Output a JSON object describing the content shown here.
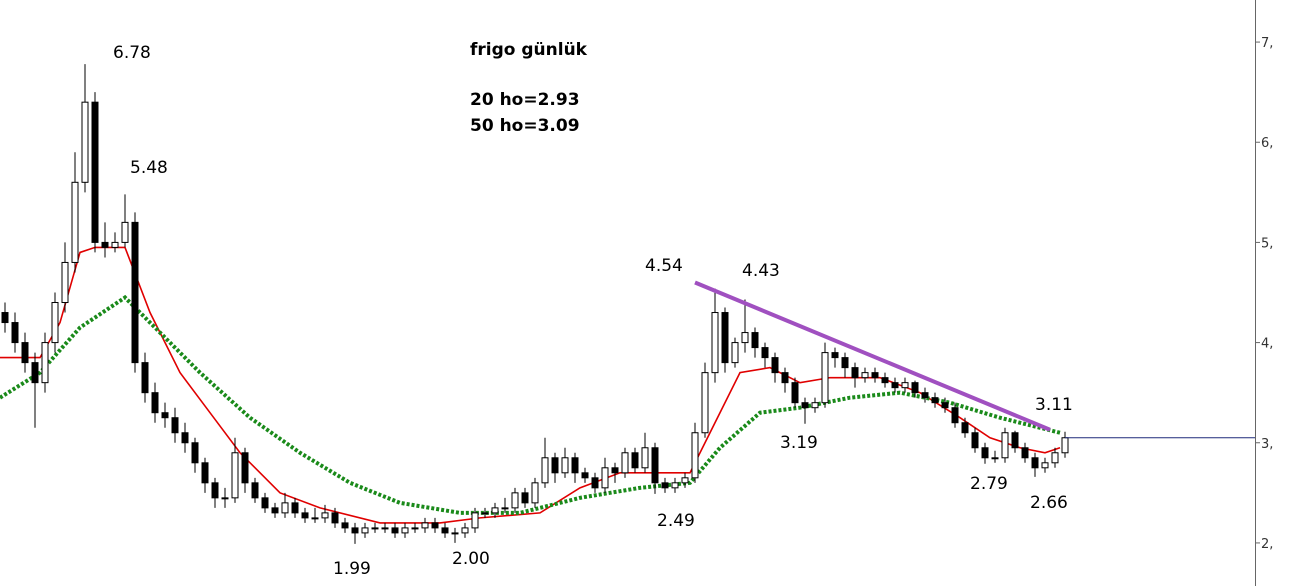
{
  "chart_data": {
    "type": "candlestick",
    "title": "frigo günlük",
    "notes": [
      "20 ho=2.93",
      "50 ho=3.09"
    ],
    "xlim": [
      -0.5,
      125
    ],
    "ylim": [
      1.57,
      7.42
    ],
    "yticks": [
      {
        "value": 2,
        "label": "2,"
      },
      {
        "value": 3,
        "label": "3,"
      },
      {
        "value": 4,
        "label": "4,"
      },
      {
        "value": 5,
        "label": "5,"
      },
      {
        "value": 6,
        "label": "6,"
      },
      {
        "value": 7,
        "label": "7,"
      }
    ],
    "up_color": "#ffffff",
    "down_color": "#000000",
    "last_line_color": "#1f2a7a",
    "open": [
      4.3,
      4.2,
      4.0,
      3.8,
      3.6,
      4.0,
      4.4,
      4.8,
      5.6,
      6.4,
      5.0,
      4.95,
      5.0,
      5.2,
      3.8,
      3.5,
      3.3,
      3.25,
      3.1,
      3.0,
      2.8,
      2.6,
      2.45,
      2.45,
      2.9,
      2.6,
      2.45,
      2.35,
      2.3,
      2.4,
      2.3,
      2.25,
      2.25,
      2.3,
      2.2,
      2.15,
      2.1,
      2.15,
      2.15,
      2.15,
      2.1,
      2.15,
      2.15,
      2.2,
      2.15,
      2.1,
      2.1,
      2.15,
      2.3,
      2.3,
      2.35,
      2.35,
      2.5,
      2.4,
      2.6,
      2.85,
      2.7,
      2.85,
      2.7,
      2.65,
      2.55,
      2.75,
      2.7,
      2.9,
      2.75,
      2.95,
      2.6,
      2.55,
      2.6,
      2.65,
      3.1,
      3.7,
      4.3,
      3.8,
      4.0,
      4.1,
      3.95,
      3.85,
      3.7,
      3.6,
      3.4,
      3.35,
      3.4,
      3.9,
      3.85,
      3.75,
      3.65,
      3.7,
      3.65,
      3.6,
      3.55,
      3.6,
      3.5,
      3.45,
      3.4,
      3.35,
      3.2,
      3.1,
      2.95,
      2.85,
      2.85,
      3.1,
      2.95,
      2.85,
      2.75,
      2.8,
      2.9
    ],
    "high": [
      4.4,
      4.3,
      4.1,
      3.9,
      4.1,
      4.5,
      5.0,
      5.9,
      6.78,
      6.5,
      5.2,
      5.1,
      5.48,
      5.3,
      3.9,
      3.6,
      3.4,
      3.35,
      3.2,
      3.05,
      2.85,
      2.65,
      2.55,
      3.05,
      2.95,
      2.65,
      2.5,
      2.4,
      2.5,
      2.45,
      2.35,
      2.35,
      2.38,
      2.35,
      2.25,
      2.2,
      2.2,
      2.2,
      2.2,
      2.2,
      2.2,
      2.2,
      2.25,
      2.25,
      2.2,
      2.15,
      2.2,
      2.35,
      2.35,
      2.4,
      2.45,
      2.55,
      2.55,
      2.65,
      3.05,
      2.9,
      2.95,
      2.9,
      2.75,
      2.7,
      2.85,
      2.8,
      2.95,
      2.95,
      3.1,
      3.0,
      2.65,
      2.65,
      2.7,
      3.2,
      3.8,
      4.54,
      4.35,
      4.05,
      4.43,
      4.15,
      4.0,
      3.9,
      3.75,
      3.65,
      3.45,
      3.45,
      4.0,
      3.95,
      3.9,
      3.8,
      3.75,
      3.75,
      3.7,
      3.65,
      3.65,
      3.62,
      3.55,
      3.5,
      3.45,
      3.4,
      3.25,
      3.15,
      3.0,
      2.92,
      3.15,
      3.12,
      3.0,
      2.9,
      2.85,
      2.95,
      3.11
    ],
    "low": [
      4.1,
      3.9,
      3.7,
      3.15,
      3.5,
      3.9,
      4.3,
      4.7,
      5.5,
      4.9,
      4.85,
      4.9,
      4.95,
      3.7,
      3.4,
      3.2,
      3.15,
      3.0,
      2.9,
      2.7,
      2.5,
      2.35,
      2.35,
      2.4,
      2.5,
      2.4,
      2.3,
      2.25,
      2.25,
      2.25,
      2.2,
      2.2,
      2.2,
      2.15,
      2.1,
      1.99,
      2.05,
      2.1,
      2.1,
      2.05,
      2.05,
      2.1,
      2.1,
      2.1,
      2.05,
      2.0,
      2.05,
      2.1,
      2.25,
      2.25,
      2.3,
      2.3,
      2.35,
      2.35,
      2.55,
      2.6,
      2.65,
      2.6,
      2.6,
      2.5,
      2.5,
      2.6,
      2.65,
      2.7,
      2.7,
      2.49,
      2.5,
      2.5,
      2.55,
      2.6,
      3.05,
      3.6,
      3.7,
      3.75,
      3.9,
      3.85,
      3.75,
      3.6,
      3.5,
      3.35,
      3.19,
      3.3,
      3.35,
      3.75,
      3.65,
      3.55,
      3.6,
      3.6,
      3.55,
      3.5,
      3.5,
      3.45,
      3.4,
      3.35,
      3.3,
      3.15,
      3.05,
      2.9,
      2.79,
      2.8,
      2.8,
      2.9,
      2.8,
      2.66,
      2.7,
      2.75,
      2.85
    ],
    "close": [
      4.2,
      4.0,
      3.8,
      3.6,
      4.0,
      4.4,
      4.8,
      5.6,
      6.4,
      5.0,
      4.95,
      5.0,
      5.2,
      3.8,
      3.5,
      3.3,
      3.25,
      3.1,
      3.0,
      2.8,
      2.6,
      2.45,
      2.45,
      2.9,
      2.6,
      2.45,
      2.35,
      2.3,
      2.4,
      2.3,
      2.25,
      2.25,
      2.3,
      2.2,
      2.15,
      2.1,
      2.15,
      2.15,
      2.15,
      2.1,
      2.15,
      2.15,
      2.2,
      2.15,
      2.1,
      2.1,
      2.15,
      2.3,
      2.3,
      2.35,
      2.35,
      2.5,
      2.4,
      2.6,
      2.85,
      2.7,
      2.85,
      2.7,
      2.65,
      2.55,
      2.75,
      2.7,
      2.9,
      2.75,
      2.95,
      2.6,
      2.55,
      2.6,
      2.65,
      3.1,
      3.7,
      4.3,
      3.8,
      4.0,
      4.1,
      3.95,
      3.85,
      3.7,
      3.6,
      3.4,
      3.35,
      3.4,
      3.9,
      3.85,
      3.75,
      3.65,
      3.7,
      3.65,
      3.6,
      3.55,
      3.6,
      3.5,
      3.45,
      3.4,
      3.35,
      3.2,
      3.1,
      2.95,
      2.85,
      2.85,
      3.1,
      2.95,
      2.85,
      2.75,
      2.8,
      2.9,
      3.05
    ],
    "series": [
      {
        "color": "#e00000",
        "dashed": false,
        "x": [
          -0.5,
          3.5,
          5.5,
          7.5,
          9,
          12,
          14.5,
          17.5,
          20.5,
          23.5,
          27.5,
          31.5,
          37.5,
          43.5,
          47.5,
          53.5,
          57.5,
          61.5,
          65.5,
          68.5,
          70.5,
          73.5,
          76.5,
          79.5,
          82.5,
          87.5,
          91.5,
          95.5,
          98.5,
          101.5,
          104,
          105.5
        ],
        "values": [
          3.85,
          3.85,
          4.2,
          4.9,
          4.95,
          4.95,
          4.3,
          3.7,
          3.3,
          2.9,
          2.5,
          2.35,
          2.2,
          2.2,
          2.25,
          2.3,
          2.55,
          2.7,
          2.7,
          2.7,
          3.1,
          3.7,
          3.75,
          3.6,
          3.65,
          3.65,
          3.5,
          3.25,
          3.05,
          2.95,
          2.9,
          2.95
        ]
      },
      {
        "color": "#1a8a1a",
        "dashed": true,
        "x": [
          -0.5,
          3.5,
          7.5,
          12,
          15.5,
          19.5,
          24.5,
          29.5,
          34.5,
          39.5,
          45.5,
          51.5,
          57.5,
          63.5,
          68.5,
          71.5,
          75.5,
          79.5,
          84.5,
          89.5,
          94.5,
          99.5,
          105.5
        ],
        "values": [
          3.45,
          3.7,
          4.15,
          4.45,
          4.1,
          3.7,
          3.25,
          2.9,
          2.6,
          2.4,
          2.3,
          2.3,
          2.45,
          2.55,
          2.6,
          2.95,
          3.3,
          3.35,
          3.45,
          3.5,
          3.4,
          3.25,
          3.1
        ]
      }
    ],
    "trendline": {
      "color": "#a050c0",
      "x": [
        69,
        104.5
      ],
      "values": [
        4.6,
        3.13
      ]
    },
    "annotations": [
      "6.78",
      "5.48",
      "4.54",
      "4.43",
      "3.11",
      "3.19",
      "2.79",
      "2.66",
      "2.49",
      "2.00",
      "1.99"
    ]
  }
}
